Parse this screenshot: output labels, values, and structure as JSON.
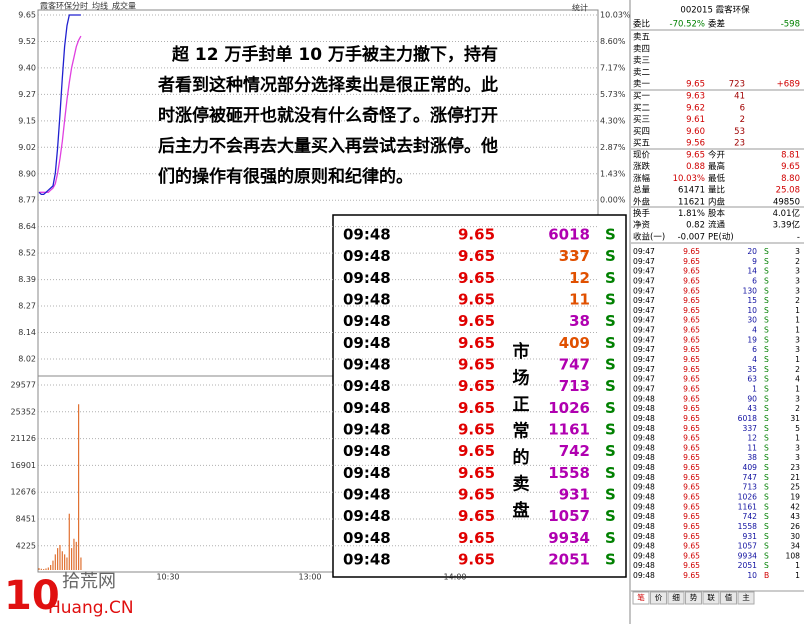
{
  "chart_header": {
    "stock": "霞客环保",
    "tabs": [
      "分时",
      "均线",
      "成交量"
    ],
    "stat": "统计"
  },
  "price_chart": {
    "price_ticks": [
      "9.65",
      "9.52",
      "9.40",
      "9.27",
      "9.15",
      "9.02",
      "8.90",
      "8.77",
      "8.64",
      "8.52",
      "8.39",
      "8.27",
      "8.14",
      "8.02"
    ],
    "pct_ticks": [
      "10.03%",
      "8.60%",
      "7.17%",
      "5.73%",
      "4.30%",
      "2.87%",
      "1.43%",
      "0.00%"
    ],
    "volume_ticks": [
      "29577",
      "25352",
      "21126",
      "16901",
      "12676",
      "8451",
      "4225"
    ],
    "time_labels": [
      "10:30",
      "13:00",
      "14:00"
    ],
    "ylim": [
      8.02,
      9.65
    ],
    "volume_ylim": [
      0,
      29577
    ],
    "price": [
      8.81,
      8.8,
      8.8,
      8.81,
      8.82,
      8.83,
      8.84,
      8.9,
      9.02,
      9.18,
      9.35,
      9.5,
      9.6,
      9.65,
      9.65,
      9.65,
      9.65,
      9.65,
      9.65
    ],
    "avg": [
      8.81,
      8.81,
      8.81,
      8.81,
      8.81,
      8.82,
      8.83,
      8.85,
      8.9,
      8.97,
      9.05,
      9.15,
      9.25,
      9.33,
      9.4,
      9.45,
      9.5,
      9.53,
      9.55
    ],
    "volume": [
      300,
      200,
      150,
      250,
      400,
      800,
      1500,
      2500,
      3500,
      4000,
      3000,
      2500,
      2000,
      9000,
      3500,
      5000,
      4500,
      26500,
      2000
    ]
  },
  "annotation": {
    "paragraph": [
      "超 12 万手封单 10 万手被主力撤下，持有",
      "者看到这种情况部分选择卖出是很正常的。此",
      "时涨停被砸开也就没有什么奇怪了。涨停打开",
      "后主力不会再去大量买入再尝试去封涨停。他",
      "们的操作有很强的原则和纪律的。"
    ],
    "vertical_note": "市场正常的卖盘"
  },
  "trade_box": {
    "rows": [
      [
        "09:48",
        "9.65",
        "6018",
        "S"
      ],
      [
        "09:48",
        "9.65",
        "337",
        "S"
      ],
      [
        "09:48",
        "9.65",
        "12",
        "S"
      ],
      [
        "09:48",
        "9.65",
        "11",
        "S"
      ],
      [
        "09:48",
        "9.65",
        "38",
        "S"
      ],
      [
        "09:48",
        "9.65",
        "409",
        "S"
      ],
      [
        "09:48",
        "9.65",
        "747",
        "S"
      ],
      [
        "09:48",
        "9.65",
        "713",
        "S"
      ],
      [
        "09:48",
        "9.65",
        "1026",
        "S"
      ],
      [
        "09:48",
        "9.65",
        "1161",
        "S"
      ],
      [
        "09:48",
        "9.65",
        "742",
        "S"
      ],
      [
        "09:48",
        "9.65",
        "1558",
        "S"
      ],
      [
        "09:48",
        "9.65",
        "931",
        "S"
      ],
      [
        "09:48",
        "9.65",
        "1057",
        "S"
      ],
      [
        "09:48",
        "9.65",
        "9934",
        "S"
      ],
      [
        "09:48",
        "9.65",
        "2051",
        "S"
      ]
    ],
    "vol_colors": [
      "#b000b0",
      "#e05000",
      "#e05000",
      "#e05000",
      "#b000b0",
      "#e05000",
      "#b000b0",
      "#b000b0",
      "#b000b0",
      "#b000b0",
      "#b000b0",
      "#b000b0",
      "#b000b0",
      "#b000b0",
      "#b000b0",
      "#b000b0"
    ]
  },
  "quote_panel": {
    "title": "002015 霞客环保",
    "ratio": [
      "委比",
      "-70.52%",
      "委差",
      "-598"
    ],
    "book": [
      [
        "卖五"
      ],
      [
        "卖四"
      ],
      [
        "卖三"
      ],
      [
        "卖二"
      ],
      [
        "卖一",
        "9.65",
        "723",
        "+689"
      ],
      [
        "买一",
        "9.63",
        "41"
      ],
      [
        "买二",
        "9.62",
        "6"
      ],
      [
        "买三",
        "9.61",
        "2"
      ],
      [
        "买四",
        "9.60",
        "53"
      ],
      [
        "买五",
        "9.56",
        "23"
      ]
    ],
    "stats": [
      [
        "现价",
        "9.65",
        "今开",
        "8.81"
      ],
      [
        "涨跌",
        "0.88",
        "最高",
        "9.65"
      ],
      [
        "涨幅",
        "10.03%",
        "最低",
        "8.80"
      ],
      [
        "总量",
        "61471",
        "量比",
        "25.08"
      ],
      [
        "外盘",
        "11621",
        "内盘",
        "49850"
      ],
      [
        "换手",
        "1.81%",
        "股本",
        "4.01亿"
      ],
      [
        "净资",
        "0.82",
        "流通",
        "3.39亿"
      ],
      [
        "收益(一)",
        "-0.007",
        "PE(动)",
        "-"
      ]
    ],
    "ticks": [
      [
        "09:47",
        "9.65",
        "20",
        "S",
        "3"
      ],
      [
        "09:47",
        "9.65",
        "9",
        "S",
        "2"
      ],
      [
        "09:47",
        "9.65",
        "14",
        "S",
        "3"
      ],
      [
        "09:47",
        "9.65",
        "6",
        "S",
        "3"
      ],
      [
        "09:47",
        "9.65",
        "130",
        "S",
        "3"
      ],
      [
        "09:47",
        "9.65",
        "15",
        "S",
        "2"
      ],
      [
        "09:47",
        "9.65",
        "10",
        "S",
        "1"
      ],
      [
        "09:47",
        "9.65",
        "30",
        "S",
        "1"
      ],
      [
        "09:47",
        "9.65",
        "4",
        "S",
        "1"
      ],
      [
        "09:47",
        "9.65",
        "19",
        "S",
        "3"
      ],
      [
        "09:47",
        "9.65",
        "6",
        "S",
        "3"
      ],
      [
        "09:47",
        "9.65",
        "4",
        "S",
        "1"
      ],
      [
        "09:47",
        "9.65",
        "35",
        "S",
        "2"
      ],
      [
        "09:47",
        "9.65",
        "63",
        "S",
        "4"
      ],
      [
        "09:47",
        "9.65",
        "1",
        "S",
        "1"
      ],
      [
        "09:48",
        "9.65",
        "90",
        "S",
        "3"
      ],
      [
        "09:48",
        "9.65",
        "43",
        "S",
        "2"
      ],
      [
        "09:48",
        "9.65",
        "6018",
        "S",
        "31"
      ],
      [
        "09:48",
        "9.65",
        "337",
        "S",
        "5"
      ],
      [
        "09:48",
        "9.65",
        "12",
        "S",
        "1"
      ],
      [
        "09:48",
        "9.65",
        "11",
        "S",
        "3"
      ],
      [
        "09:48",
        "9.65",
        "38",
        "S",
        "3"
      ],
      [
        "09:48",
        "9.65",
        "409",
        "S",
        "23"
      ],
      [
        "09:48",
        "9.65",
        "747",
        "S",
        "21"
      ],
      [
        "09:48",
        "9.65",
        "713",
        "S",
        "25"
      ],
      [
        "09:48",
        "9.65",
        "1026",
        "S",
        "19"
      ],
      [
        "09:48",
        "9.65",
        "1161",
        "S",
        "42"
      ],
      [
        "09:48",
        "9.65",
        "742",
        "S",
        "43"
      ],
      [
        "09:48",
        "9.65",
        "1558",
        "S",
        "26"
      ],
      [
        "09:48",
        "9.65",
        "931",
        "S",
        "30"
      ],
      [
        "09:48",
        "9.65",
        "1057",
        "S",
        "34"
      ],
      [
        "09:48",
        "9.65",
        "9934",
        "S",
        "108"
      ],
      [
        "09:48",
        "9.65",
        "2051",
        "S",
        "1"
      ],
      [
        "09:48",
        "9.65",
        "10",
        "B",
        "1"
      ]
    ]
  },
  "bottom_tabs": [
    "笔",
    "价",
    "细",
    "势",
    "联",
    "值",
    "主"
  ],
  "watermark": {
    "big": "10",
    "site": "拾荒网",
    "domain": "Huang.CN"
  }
}
